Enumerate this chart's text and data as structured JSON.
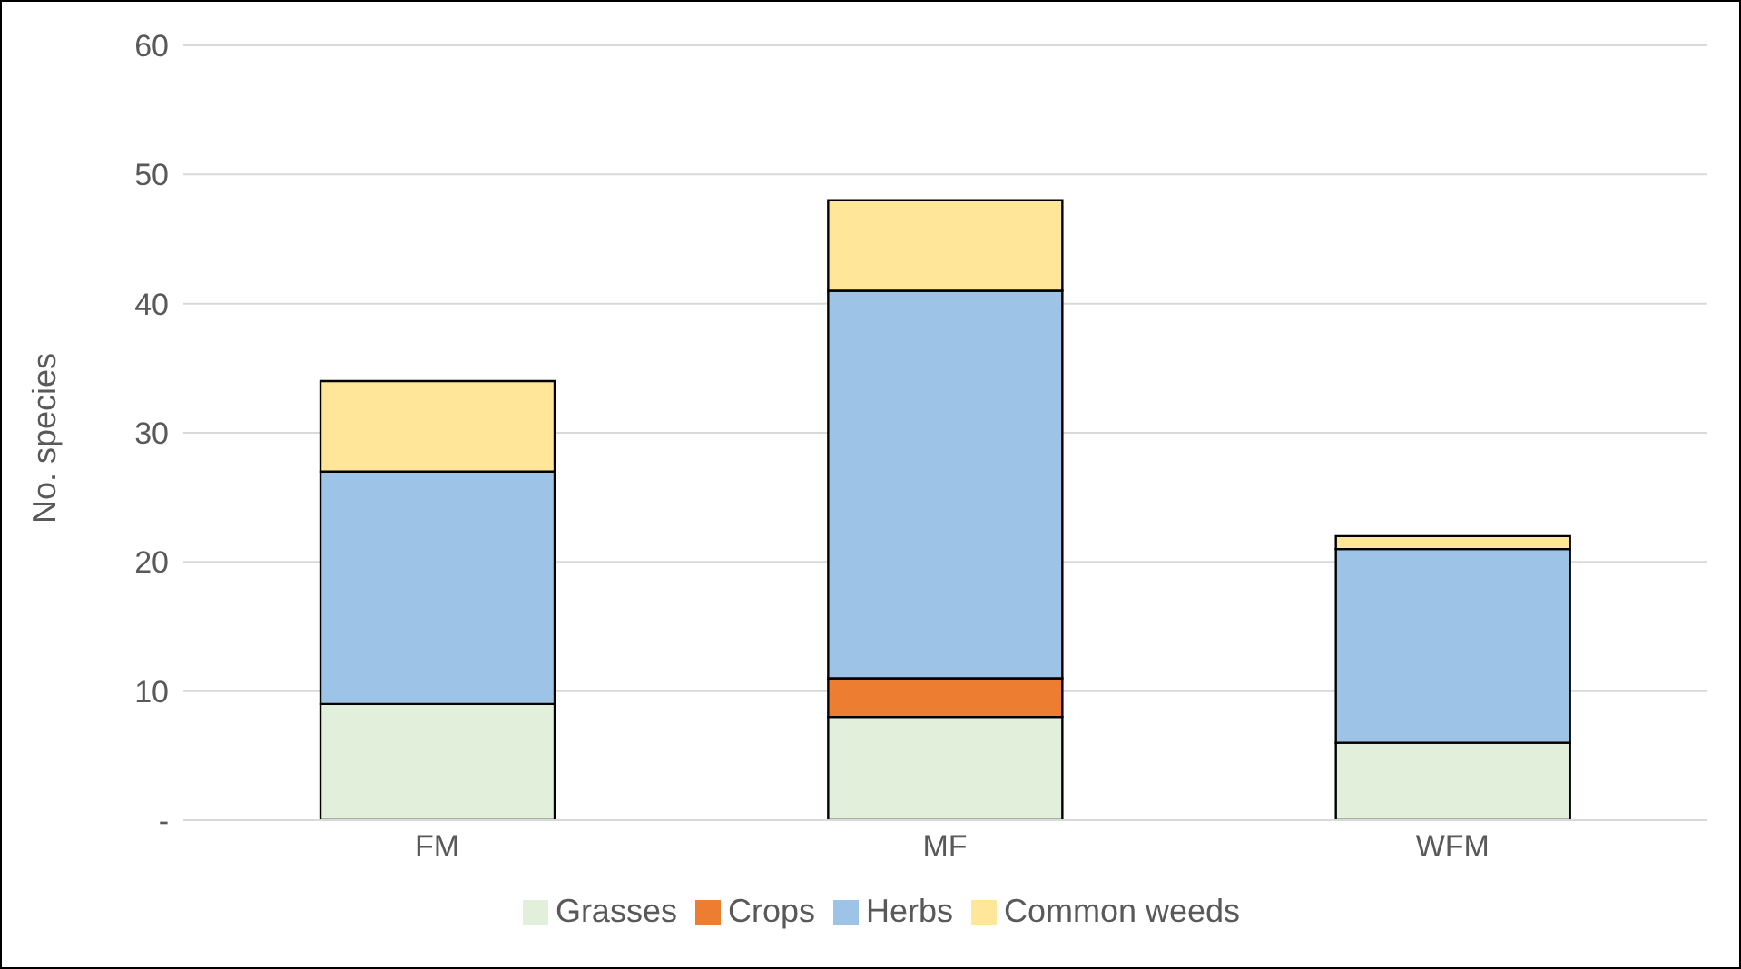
{
  "chart_data": {
    "type": "bar",
    "stacked": true,
    "ylabel": "No. species",
    "categories": [
      "FM",
      "MF",
      "WFM"
    ],
    "series": [
      {
        "name": "Grasses",
        "color": "#e2efda",
        "values": [
          9,
          8,
          6
        ]
      },
      {
        "name": "Crops",
        "color": "#ed7d31",
        "values": [
          0,
          3,
          0
        ]
      },
      {
        "name": "Herbs",
        "color": "#9dc3e6",
        "values": [
          18,
          30,
          15
        ]
      },
      {
        "name": "Common weeds",
        "color": "#ffe699",
        "values": [
          7,
          7,
          1
        ]
      }
    ],
    "ylim": [
      0,
      60
    ],
    "yticks": [
      {
        "value": 0,
        "label": "-"
      },
      10,
      20,
      30,
      40,
      50,
      60
    ],
    "grid": "y",
    "legend": "bottom"
  }
}
